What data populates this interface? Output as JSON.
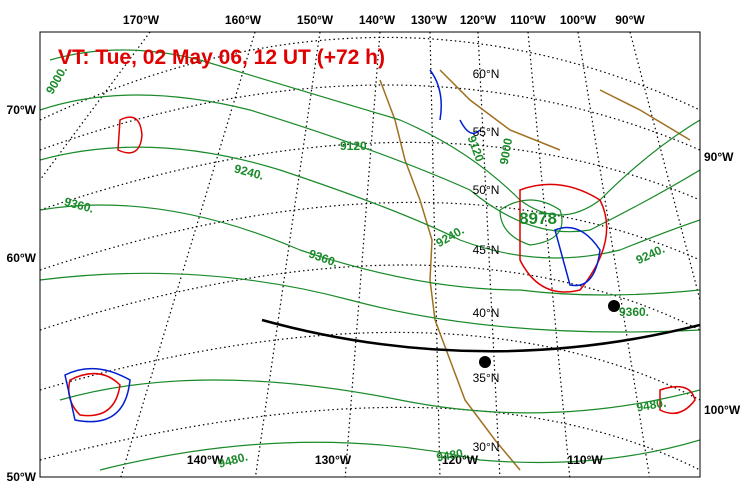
{
  "title": "VT:  Tue, 02 May 06, 12 UT (+72 h)",
  "top_labels": [
    "170°W",
    "160°W",
    "150°W",
    "140°W",
    "130°W",
    "120°W",
    "110°W",
    "100°W",
    "90°W"
  ],
  "left_labels": [
    "70°W",
    "60°W",
    "50°W"
  ],
  "right_labels": [
    "90°W",
    "100°W"
  ],
  "bottom_labels": [
    "140°W",
    "130°W",
    "120°W",
    "110°W"
  ],
  "latitude_labels": [
    "60°N",
    "55°N",
    "50°N",
    "45°N",
    "40°N",
    "35°N",
    "30°N"
  ],
  "contour_labels": [
    "9000.",
    "9120.",
    "9240.",
    "9360.",
    "9360.",
    "9240.",
    "9000",
    "9120",
    "9240.",
    "9360.",
    "9480.",
    "9480.",
    "9480."
  ],
  "low_label": "8978"
}
